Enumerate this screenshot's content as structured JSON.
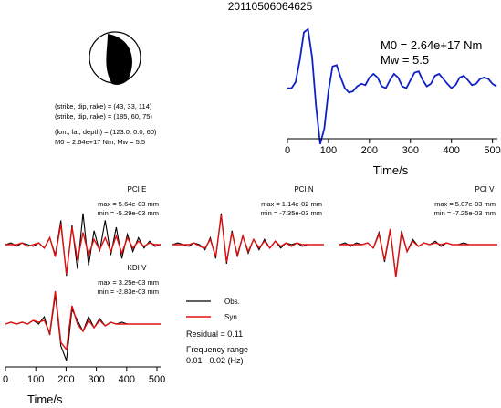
{
  "title": "20110506064625",
  "focal": {
    "lines": [
      "(strike, dip, rake) = (43, 33, 114)",
      "(strike, dip, rake) = (185, 60, 75)",
      "(lon., lat, depth) = (123.0, 0.0, 60)",
      "M0 = 2.64e+17 Nm, Mw = 5.5"
    ]
  },
  "stf": {
    "m0_label": "M0 = 2.64e+17 Nm",
    "mw_label": "Mw = 5.5",
    "color": "#1020c8"
  },
  "legend": {
    "obs": "Obs.",
    "syn": "Syn.",
    "residual": "Residual = 0.11",
    "freq_title": "Frequency range",
    "freq_range": "0.01 - 0.02 (Hz)"
  },
  "colors": {
    "observed": "#000000",
    "synthetic": "#e01010"
  },
  "chart_data": [
    {
      "type": "line",
      "name": "source-time-function",
      "xlabel": "Time/s",
      "xlim": [
        0,
        512
      ],
      "xticks": [
        0,
        100,
        200,
        300,
        400,
        500
      ],
      "series": [
        {
          "x": [
            0,
            10,
            20,
            30,
            40,
            50,
            60,
            70,
            80,
            90,
            100,
            110,
            120,
            130,
            140,
            150,
            160,
            170,
            180,
            190,
            200,
            210,
            220,
            230,
            240,
            250,
            260,
            270,
            280,
            290,
            300,
            310,
            320,
            330,
            340,
            350,
            360,
            370,
            380,
            390,
            400,
            410,
            420,
            430,
            440,
            450,
            460,
            470,
            480,
            490,
            500,
            510
          ],
          "y": [
            0.05,
            0.05,
            0.15,
            0.5,
            0.95,
            1.0,
            0.55,
            -0.25,
            -0.85,
            -0.6,
            0.0,
            0.4,
            0.42,
            0.22,
            0.05,
            -0.02,
            0.0,
            0.08,
            0.12,
            0.1,
            0.22,
            0.28,
            0.22,
            0.08,
            0.05,
            0.18,
            0.28,
            0.22,
            0.08,
            0.05,
            0.18,
            0.3,
            0.32,
            0.18,
            0.08,
            0.12,
            0.25,
            0.28,
            0.2,
            0.12,
            0.05,
            0.1,
            0.22,
            0.25,
            0.18,
            0.1,
            0.12,
            0.2,
            0.22,
            0.2,
            0.12,
            0.08
          ]
        }
      ]
    },
    {
      "type": "line",
      "name": "waveforms",
      "xlabel": "Time/s",
      "xlim": [
        0,
        512
      ],
      "xticks": [
        0,
        100,
        200,
        300,
        400,
        500
      ],
      "traces": [
        {
          "station": "PCI E",
          "max": "max = 5.64e-03 mm",
          "min": "min = -5.29e-03 mm",
          "obs": [
            0,
            0.05,
            -0.05,
            0.05,
            0,
            -0.05,
            0.05,
            -0.1,
            0.2,
            -0.3,
            0.7,
            -0.9,
            0.55,
            -0.7,
            0.9,
            -0.6,
            0.4,
            -0.2,
            0.7,
            -0.3,
            0.5,
            -0.4,
            0.3,
            -0.2,
            0.2,
            -0.1,
            0.1,
            -0.05,
            0
          ],
          "syn": [
            0,
            0,
            0,
            0.05,
            -0.05,
            0,
            0.05,
            -0.1,
            0.2,
            -0.35,
            0.6,
            -0.85,
            0.5,
            -0.45,
            0.35,
            -0.3,
            0.15,
            -0.15,
            0.2,
            -0.2,
            0.25,
            -0.25,
            0.2,
            -0.1,
            0.1,
            -0.05,
            0.05,
            0,
            0
          ]
        },
        {
          "station": "PCI N",
          "max": "max = 1.14e-02 mm",
          "min": "min = -7.35e-03 mm",
          "obs": [
            0,
            0.05,
            0,
            -0.05,
            0.05,
            0,
            -0.15,
            0.2,
            -0.4,
            0.9,
            -0.55,
            0.4,
            -0.35,
            0.25,
            -0.25,
            0.15,
            -0.15,
            0.15,
            -0.1,
            0.1,
            -0.1,
            0.05,
            0,
            0.05,
            -0.05,
            0,
            0,
            0,
            0
          ],
          "syn": [
            0,
            0,
            0,
            0,
            0.05,
            -0.05,
            -0.1,
            0.15,
            -0.35,
            0.85,
            -0.5,
            0.35,
            -0.3,
            0.25,
            -0.2,
            0.15,
            -0.1,
            0.1,
            -0.1,
            0.1,
            -0.05,
            0.05,
            -0.05,
            0.05,
            0,
            0,
            0,
            0,
            0
          ]
        },
        {
          "station": "PCI V",
          "max": "max = 5.07e-03 mm",
          "min": "min = -7.25e-03 mm",
          "obs": [
            0,
            0.05,
            -0.05,
            0.05,
            0,
            0.05,
            -0.1,
            0.35,
            -0.5,
            0.4,
            -0.9,
            0.4,
            -0.2,
            0.15,
            -0.05,
            0.05,
            0,
            0.1,
            -0.05,
            0.05,
            0,
            0,
            0.05,
            0,
            0,
            0,
            0,
            0,
            0
          ],
          "syn": [
            0,
            0,
            0,
            0,
            0,
            0.05,
            -0.1,
            0.3,
            -0.45,
            0.45,
            -0.95,
            0.35,
            -0.2,
            0.1,
            -0.05,
            0.05,
            0,
            0.05,
            0,
            0.05,
            0,
            0,
            0,
            0,
            0,
            0,
            0,
            0,
            0
          ]
        },
        {
          "station": "KDI V",
          "max": "max = 3.25e-03 mm",
          "min": "min = -2.83e-03 mm",
          "obs": [
            0,
            0.05,
            0,
            0.05,
            0,
            0.1,
            0,
            0.2,
            -0.3,
            0.8,
            -0.6,
            -1.0,
            0.4,
            0.1,
            -0.2,
            0.2,
            -0.1,
            0.15,
            -0.05,
            0.05,
            0,
            0.05,
            0,
            0,
            0,
            0,
            0,
            0,
            0
          ],
          "syn": [
            0,
            0.05,
            0,
            0.05,
            0,
            0.1,
            0.05,
            0.1,
            -0.25,
            0.9,
            -0.5,
            -0.7,
            0.5,
            0,
            -0.2,
            0.1,
            -0.1,
            0.1,
            -0.05,
            0.05,
            0,
            0,
            0,
            0,
            0,
            0,
            0,
            0,
            0
          ]
        }
      ]
    }
  ]
}
